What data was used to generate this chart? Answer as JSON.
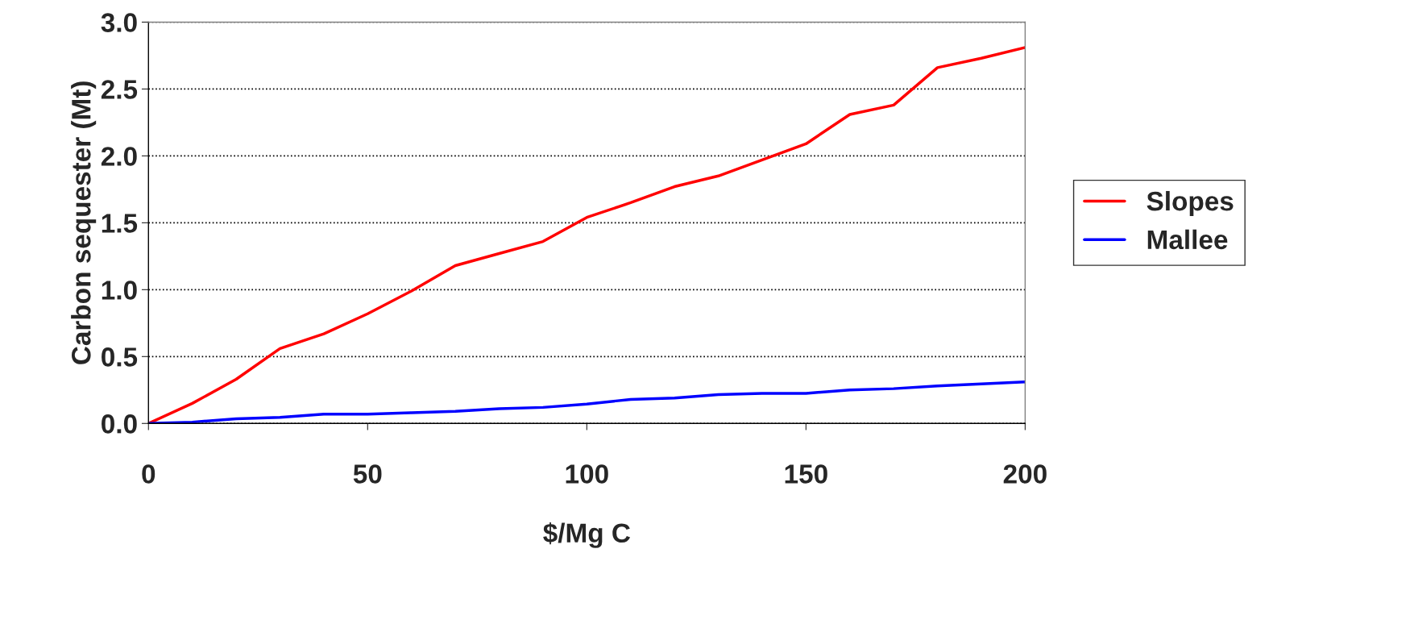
{
  "chart_data": {
    "type": "line",
    "xlabel": "$/Mg C",
    "ylabel": "Carbon sequester (Mt)",
    "x": [
      0,
      10,
      20,
      30,
      40,
      50,
      60,
      70,
      80,
      90,
      100,
      110,
      120,
      130,
      140,
      150,
      160,
      170,
      180,
      190,
      200
    ],
    "series": [
      {
        "name": "Slopes",
        "color": "#ff0000",
        "values": [
          0,
          0.15,
          0.33,
          0.56,
          0.67,
          0.82,
          0.99,
          1.18,
          1.27,
          1.36,
          1.54,
          1.65,
          1.77,
          1.85,
          1.97,
          2.09,
          2.31,
          2.38,
          2.66,
          2.73,
          2.81
        ]
      },
      {
        "name": "Mallee",
        "color": "#0000ff",
        "values": [
          0,
          0.01,
          0.035,
          0.045,
          0.07,
          0.07,
          0.08,
          0.09,
          0.11,
          0.12,
          0.145,
          0.18,
          0.19,
          0.215,
          0.225,
          0.225,
          0.25,
          0.26,
          0.28,
          0.295,
          0.31
        ]
      }
    ],
    "xlim": [
      0,
      200
    ],
    "xticks": [
      0,
      50,
      100,
      150,
      200
    ],
    "ylim": [
      0,
      3.0
    ],
    "yticks": [
      {
        "value": 0,
        "label": "0.0"
      },
      {
        "value": 0.5,
        "label": "0.5"
      },
      {
        "value": 1.0,
        "label": "1.0"
      },
      {
        "value": 1.5,
        "label": "1.5"
      },
      {
        "value": 2.0,
        "label": "2.0"
      },
      {
        "value": 2.5,
        "label": "2.5"
      },
      {
        "value": 3.0,
        "label": "3.0"
      }
    ],
    "grid": "y",
    "legend": "right",
    "line_style": "solid",
    "marker": "none"
  }
}
